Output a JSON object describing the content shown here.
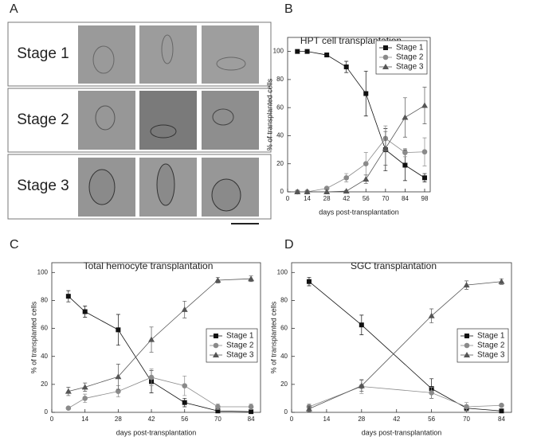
{
  "panel_a": {
    "label": "A",
    "stages": [
      "Stage 1",
      "Stage 2",
      "Stage 3"
    ]
  },
  "chart_data": [
    {
      "type": "line",
      "panel_label": "B",
      "title": "HPT cell transplantation",
      "x_label": "days post-transplantation",
      "y_label": "% of transplanted cells",
      "x": [
        7,
        14,
        28,
        42,
        56,
        70,
        84,
        98
      ],
      "xlim": [
        0,
        102
      ],
      "xticks": [
        0,
        14,
        28,
        42,
        56,
        70,
        84,
        98
      ],
      "ylim": [
        0,
        110
      ],
      "yticks": [
        0,
        20,
        40,
        60,
        80,
        100
      ],
      "legend": "upper right",
      "series": [
        {
          "name": "Stage 1",
          "color": "#111111",
          "marker": "square",
          "values": [
            100,
            100,
            97.5,
            89,
            70,
            30,
            19,
            10
          ],
          "errors": [
            0,
            1,
            1.5,
            4,
            16,
            15,
            11,
            3
          ]
        },
        {
          "name": "Stage 2",
          "color": "#8a8a8a",
          "marker": "circle",
          "values": [
            0,
            0,
            2.5,
            10,
            20,
            38,
            28,
            28.5
          ],
          "errors": [
            0,
            0,
            1,
            3,
            8,
            9,
            3,
            10
          ]
        },
        {
          "name": "Stage 3",
          "color": "#555555",
          "marker": "triangle",
          "values": [
            0,
            0,
            0,
            0.5,
            9,
            31,
            53,
            61.5
          ],
          "errors": [
            0,
            0,
            0,
            0.5,
            3,
            12,
            14,
            13
          ]
        }
      ]
    },
    {
      "type": "line",
      "panel_label": "C",
      "title": "Total hemocyte transplantation",
      "x_label": "days post-transplantation",
      "y_label": "% of transplanted cells",
      "x": [
        7,
        14,
        28,
        42,
        56,
        70,
        84
      ],
      "xlim": [
        0,
        88
      ],
      "xticks": [
        0,
        14,
        28,
        42,
        56,
        70,
        84
      ],
      "ylim": [
        0,
        107
      ],
      "yticks": [
        0,
        20,
        40,
        60,
        80,
        100
      ],
      "legend": "center right",
      "series": [
        {
          "name": "Stage 1",
          "color": "#111111",
          "marker": "square",
          "values": [
            83,
            72,
            59,
            22,
            7,
            1,
            0.5
          ],
          "errors": [
            4,
            4,
            11,
            8,
            3,
            1,
            0.5
          ]
        },
        {
          "name": "Stage 2",
          "color": "#8a8a8a",
          "marker": "circle",
          "values": [
            3,
            10,
            15,
            25,
            19,
            4,
            4
          ],
          "errors": [
            1,
            3,
            4,
            6,
            7,
            2,
            2
          ]
        },
        {
          "name": "Stage 3",
          "color": "#555555",
          "marker": "triangle",
          "values": [
            15,
            18,
            25.5,
            52,
            73.5,
            94.5,
            95.5
          ],
          "errors": [
            3,
            3,
            9,
            9,
            6,
            2,
            2
          ]
        }
      ]
    },
    {
      "type": "line",
      "panel_label": "D",
      "title": "SGC transplantation",
      "x_label": "days post-transplantation",
      "y_label": "% of transplanted cells",
      "x": [
        7,
        28,
        56,
        70,
        84
      ],
      "xlim": [
        0,
        88
      ],
      "xticks": [
        0,
        14,
        28,
        42,
        56,
        70,
        84
      ],
      "ylim": [
        0,
        107
      ],
      "yticks": [
        0,
        20,
        40,
        60,
        80,
        100
      ],
      "legend": "center right",
      "series": [
        {
          "name": "Stage 1",
          "color": "#111111",
          "marker": "square",
          "values": [
            93.5,
            62.5,
            17,
            3,
            1
          ],
          "errors": [
            3,
            7,
            7,
            2,
            1
          ]
        },
        {
          "name": "Stage 2",
          "color": "#8a8a8a",
          "marker": "circle",
          "values": [
            4,
            18.5,
            14,
            4,
            5
          ],
          "errors": [
            2,
            5,
            4,
            3,
            1
          ]
        },
        {
          "name": "Stage 3",
          "color": "#555555",
          "marker": "triangle",
          "values": [
            2.5,
            19,
            69,
            91,
            93.5
          ],
          "errors": [
            2,
            4,
            5,
            3,
            2
          ]
        }
      ]
    }
  ]
}
